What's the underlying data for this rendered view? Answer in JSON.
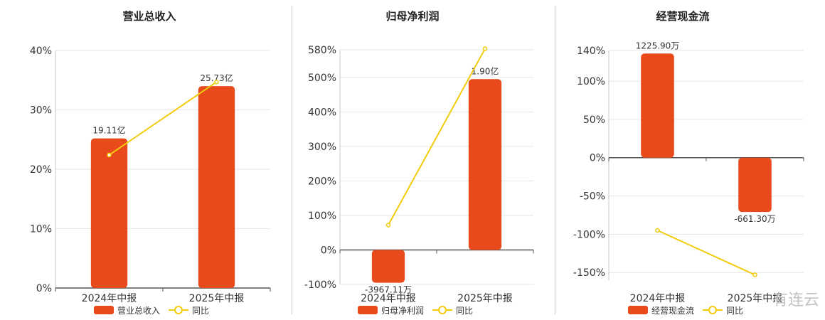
{
  "colors": {
    "bar": "#E84A1C",
    "line": "#F2CC0C",
    "grid": "#e6e6e6",
    "axis": "#555555",
    "text": "#333333"
  },
  "watermark": "有连云",
  "chart_data": [
    {
      "type": "bar",
      "title": "营业总收入",
      "categories": [
        "2024年中报",
        "2025年中报"
      ],
      "series": [
        {
          "name": "营业总收入",
          "kind": "bar",
          "values": [
            25.2,
            34.0
          ],
          "data_labels": [
            "19.11亿",
            "25.73亿"
          ]
        },
        {
          "name": "同比",
          "kind": "line",
          "values": [
            22.4,
            34.7
          ]
        }
      ],
      "yticks": [
        0,
        10,
        20,
        30,
        40
      ],
      "ytick_labels": [
        "0%",
        "10%",
        "20%",
        "30%",
        "40%"
      ],
      "ylim": [
        0,
        40
      ],
      "grid": true,
      "legend": "bottom"
    },
    {
      "type": "bar",
      "title": "归母净利润",
      "categories": [
        "2024年中报",
        "2025年中报"
      ],
      "series": [
        {
          "name": "归母净利润",
          "kind": "bar",
          "values": [
            -95,
            495
          ],
          "data_labels": [
            "-3967.11万",
            "1.90亿"
          ]
        },
        {
          "name": "同比",
          "kind": "line",
          "values": [
            72,
            583
          ]
        }
      ],
      "yticks": [
        -100,
        0,
        100,
        200,
        300,
        400,
        500,
        580
      ],
      "ytick_labels": [
        "-100%",
        "0%",
        "100%",
        "200%",
        "300%",
        "400%",
        "500%",
        "580%"
      ],
      "ylim": [
        -100,
        580
      ],
      "grid": true,
      "legend": "bottom"
    },
    {
      "type": "bar",
      "title": "经营现金流",
      "categories": [
        "2024年中报",
        "2025年中报"
      ],
      "series": [
        {
          "name": "经营现金流",
          "kind": "bar",
          "values": [
            136,
            -71
          ],
          "data_labels": [
            "1225.90万",
            "-661.30万"
          ]
        },
        {
          "name": "同比",
          "kind": "line",
          "values": [
            -95,
            -153
          ]
        }
      ],
      "yticks": [
        -150,
        -100,
        -50,
        0,
        50,
        100,
        140
      ],
      "ytick_labels": [
        "-150%",
        "-100%",
        "-50%",
        "0%",
        "50%",
        "100%",
        "140%"
      ],
      "ylim": [
        -160,
        140
      ],
      "grid": true,
      "legend": "bottom"
    }
  ]
}
